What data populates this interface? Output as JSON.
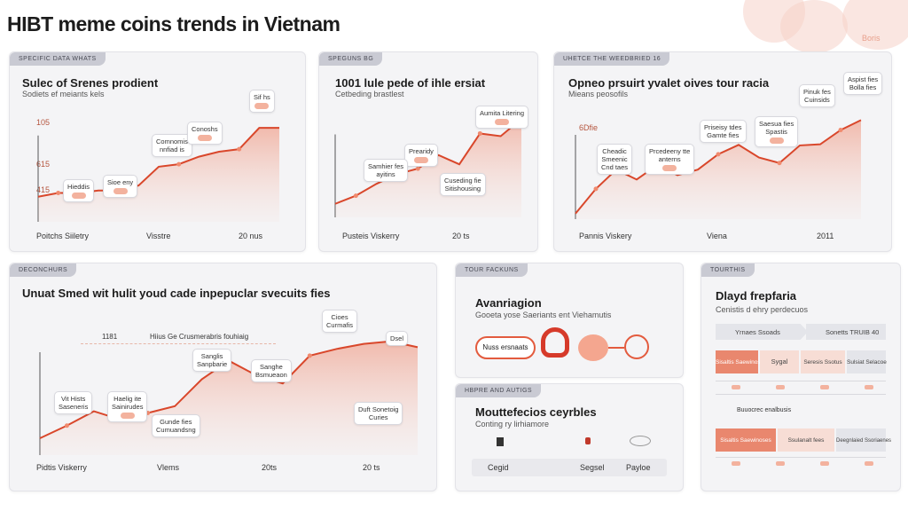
{
  "page_title": "HIBT meme coins trends in Vietnam",
  "corner_mark": "Boris",
  "panels": {
    "p1": {
      "tag": "SPECIFIC DATA WHATS",
      "title": "Sulec of Srenes prodient",
      "subtitle": "Sodiets ef meiants kels",
      "y_labels": [
        "105",
        "615",
        "415"
      ],
      "x_labels": [
        "Poitchs Siiletry",
        "Visstre",
        "20 nus"
      ],
      "callouts": [
        [
          "Hieddis",
          ""
        ],
        [
          "Comnomis",
          ""
        ],
        [
          "Conoshs",
          "nnfiad is"
        ],
        [
          "Sioe eny",
          ""
        ],
        [
          "Sif hs",
          ""
        ]
      ]
    },
    "p2": {
      "tag": "SPEGUNS BG",
      "title": "1001 lule pede of ihle ersiat",
      "subtitle": "Cetbeding brastlest",
      "x_labels": [
        "Pusteis Viskerry",
        "20 ts"
      ],
      "callouts": [
        [
          "Aumita Litering",
          ""
        ],
        [
          "Prearidy",
          ""
        ],
        [
          "Samhier fes",
          "ayitins"
        ],
        [
          "Cuseding fie",
          "Sitishousing"
        ]
      ]
    },
    "p3": {
      "tag": "UHETCE THE WEEDBRIED 16",
      "title": "Opneo prsuirt yvalet oives tour racia",
      "subtitle": "Mieans peosofils",
      "y_label": "6Dfie",
      "x_labels": [
        "Pannis Viskery",
        "Viena",
        "2011"
      ],
      "callouts": [
        [
          "Cheadic",
          "Smeenic",
          "Cnd taes"
        ],
        [
          "Prcedeeny tte",
          "anterns",
          ""
        ],
        [
          "Priseisy tdes",
          "Gamte fies"
        ],
        [
          "Saesua fies",
          "Spastis"
        ],
        [
          "Pinuk fes",
          "Cuinsids"
        ],
        [
          "Aspist fies",
          "Bolla fies"
        ]
      ]
    },
    "p4": {
      "tag": "DECONCHURS",
      "title": "Unuat Smed wit hulit youd cade inpepuclar svecuits fies",
      "legend": [
        "1181",
        "Hiius Ge Crusmerabris fouhiaig"
      ],
      "x_labels": [
        "Pidtis Viskerry",
        "Vlems",
        "20ts",
        "20 ts"
      ],
      "callouts": [
        [
          "Vit Hists",
          "Saseneris"
        ],
        [
          "Haelig ite",
          "Sainirudes"
        ],
        [
          "Sanglis",
          "Sanpbarie"
        ],
        [
          "Sanghe",
          "Bsmueaon"
        ],
        [
          "Gunde fies",
          "Cumuandsng"
        ],
        [
          "Cioes",
          "Curmafis"
        ],
        [
          "Duft Sonetoig",
          "Curies"
        ],
        [
          "Dsel",
          ""
        ]
      ]
    },
    "p5": {
      "tag": "TOUR FACKUNS",
      "title": "Avanriagion",
      "subtitle": "Gooeta yose Saeriants ent Viehamutis",
      "pill_label": "Nuss ersnaats"
    },
    "p6": {
      "tag": "HBPRE AND AUTIGS",
      "title": "Mouttefecios ceyrbles",
      "subtitle": "Conting ry lirhiamore",
      "footer": [
        "Cegid",
        "Segsel",
        "Payloe"
      ]
    },
    "p7": {
      "tag": "TOURTHIS",
      "title": "Dlayd frepfaria",
      "subtitle": "Cenistis d ehry perdecuos",
      "chevrons": [
        "Yrnaes Ssoads",
        "Sonetts TRUIB 40"
      ],
      "grid_row1": [
        "Sisaltis Saewinoses",
        "Sygal",
        "Seresis Ssotus",
        "Sulsiat Selacoe"
      ],
      "note": "Buuocrec enalbusis",
      "grid_row2": [
        "Sisaltis Saewinoses",
        "Ssulanalt fees",
        "Deegnlaied Ssoriaenes"
      ]
    }
  },
  "chart_data": [
    {
      "type": "area",
      "title": "Sulec of Srenes prodient",
      "x": [
        0,
        1,
        2,
        3,
        4,
        5,
        6,
        7,
        8,
        9,
        10,
        11,
        12
      ],
      "y": [
        40,
        46,
        46,
        50,
        50,
        58,
        88,
        92,
        104,
        112,
        116,
        150,
        150
      ],
      "ylim": [
        0,
        180
      ]
    },
    {
      "type": "area",
      "title": "1001 lule pede of ihle ersiat",
      "x": [
        0,
        1,
        2,
        3,
        4,
        5,
        6,
        7,
        8,
        9
      ],
      "y": [
        25,
        40,
        62,
        80,
        90,
        115,
        98,
        155,
        150,
        182
      ],
      "ylim": [
        0,
        200
      ]
    },
    {
      "type": "area",
      "title": "Opneo prsuirt yvalet oives tour racia",
      "x": [
        0,
        1,
        2,
        3,
        4,
        5,
        6,
        7,
        8,
        9,
        10,
        11,
        12,
        13,
        14
      ],
      "y": [
        10,
        55,
        90,
        72,
        98,
        80,
        90,
        118,
        135,
        112,
        102,
        134,
        136,
        162,
        180
      ],
      "ylim": [
        0,
        200
      ]
    },
    {
      "type": "area",
      "title": "Unuat Smed wit hulit youd cade inpepuclar svecuits fies",
      "x": [
        0,
        1,
        2,
        3,
        4,
        5,
        6,
        7,
        8,
        9,
        10,
        11,
        12,
        13,
        14
      ],
      "y": [
        20,
        35,
        52,
        42,
        50,
        58,
        90,
        112,
        95,
        85,
        118,
        126,
        132,
        135,
        128
      ],
      "ylim": [
        0,
        160
      ]
    }
  ]
}
